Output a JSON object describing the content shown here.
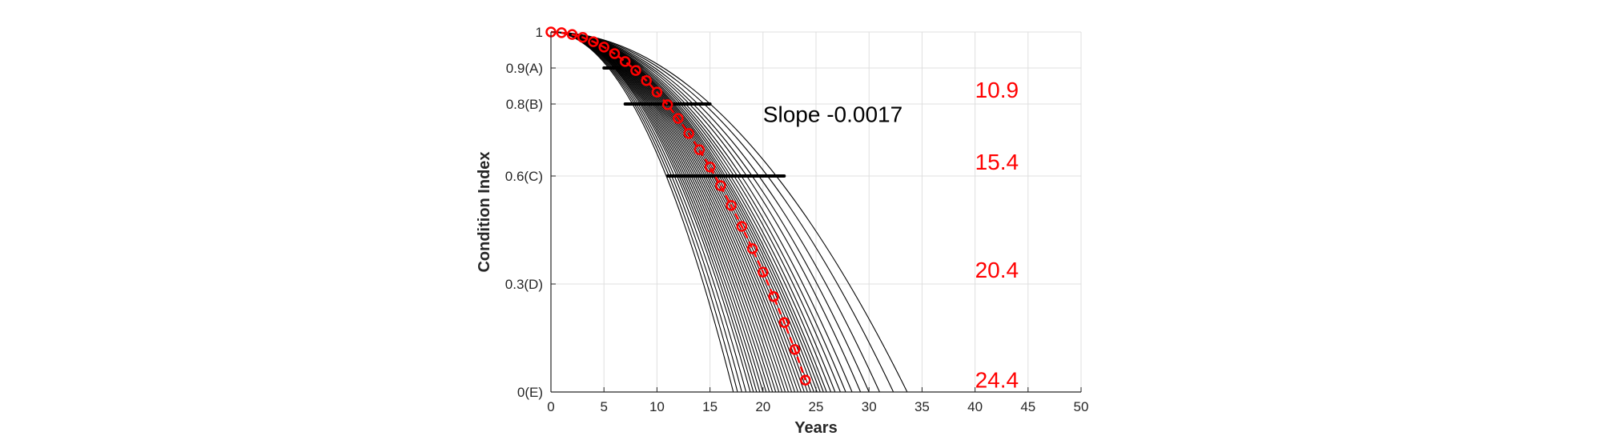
{
  "chart_data": {
    "type": "line",
    "title": "",
    "xlabel": "Years",
    "ylabel": "Condition Index",
    "xlim": [
      0,
      50
    ],
    "ylim": [
      0,
      1
    ],
    "x_ticks": [
      0,
      5,
      10,
      15,
      20,
      25,
      30,
      35,
      40,
      45,
      50
    ],
    "y_ticks": [
      {
        "value": 0,
        "label": "0(E)"
      },
      {
        "value": 0.3,
        "label": "0.3(D)"
      },
      {
        "value": 0.6,
        "label": "0.6(C)"
      },
      {
        "value": 0.8,
        "label": "0.8(B)"
      },
      {
        "value": 0.9,
        "label": "0.9(A)"
      },
      {
        "value": 1,
        "label": "1"
      }
    ],
    "grid": true,
    "series_color": "#000000",
    "mean_color": "#ff0000",
    "annotation": {
      "text": "Slope -0.0017",
      "x": 20,
      "y": 0.75
    },
    "right_labels": [
      {
        "text": "10.9",
        "y": 0.84
      },
      {
        "text": "15.4",
        "y": 0.64
      },
      {
        "text": "20.4",
        "y": 0.34
      },
      {
        "text": "24.4",
        "y": 0.035
      }
    ],
    "right_labels_x": 40,
    "range_bars": [
      {
        "y": 0.9,
        "x_start": 5,
        "x_end": 6.5
      },
      {
        "y": 0.8,
        "x_start": 7,
        "x_end": 15
      },
      {
        "y": 0.6,
        "x_start": 11,
        "x_end": 22
      }
    ],
    "deterioration_curves": {
      "shape": "y = 1 - (x / end_year)^2",
      "end_years": [
        17.2,
        17.6,
        18.0,
        18.4,
        18.8,
        19.1,
        19.4,
        19.7,
        20.0,
        20.3,
        20.6,
        20.9,
        21.2,
        21.5,
        21.8,
        22.1,
        22.4,
        22.7,
        23.0,
        23.3,
        23.6,
        23.9,
        24.2,
        24.5,
        24.8,
        25.1,
        25.4,
        25.7,
        26.0,
        26.4,
        26.8,
        27.3,
        27.8,
        28.4,
        29.2,
        30.0,
        31.0,
        32.3,
        33.6
      ]
    },
    "mean_series": {
      "name": "",
      "x": [
        0,
        1,
        2,
        3,
        4,
        5,
        6,
        7,
        8,
        9,
        10,
        11,
        12,
        13,
        14,
        15,
        16,
        17,
        18,
        19,
        20,
        21,
        22,
        23,
        24
      ],
      "y": [
        1.0,
        0.998,
        0.993,
        0.985,
        0.973,
        0.958,
        0.94,
        0.918,
        0.893,
        0.865,
        0.833,
        0.798,
        0.76,
        0.718,
        0.673,
        0.625,
        0.573,
        0.518,
        0.46,
        0.398,
        0.333,
        0.265,
        0.193,
        0.118,
        0.033
      ]
    }
  }
}
